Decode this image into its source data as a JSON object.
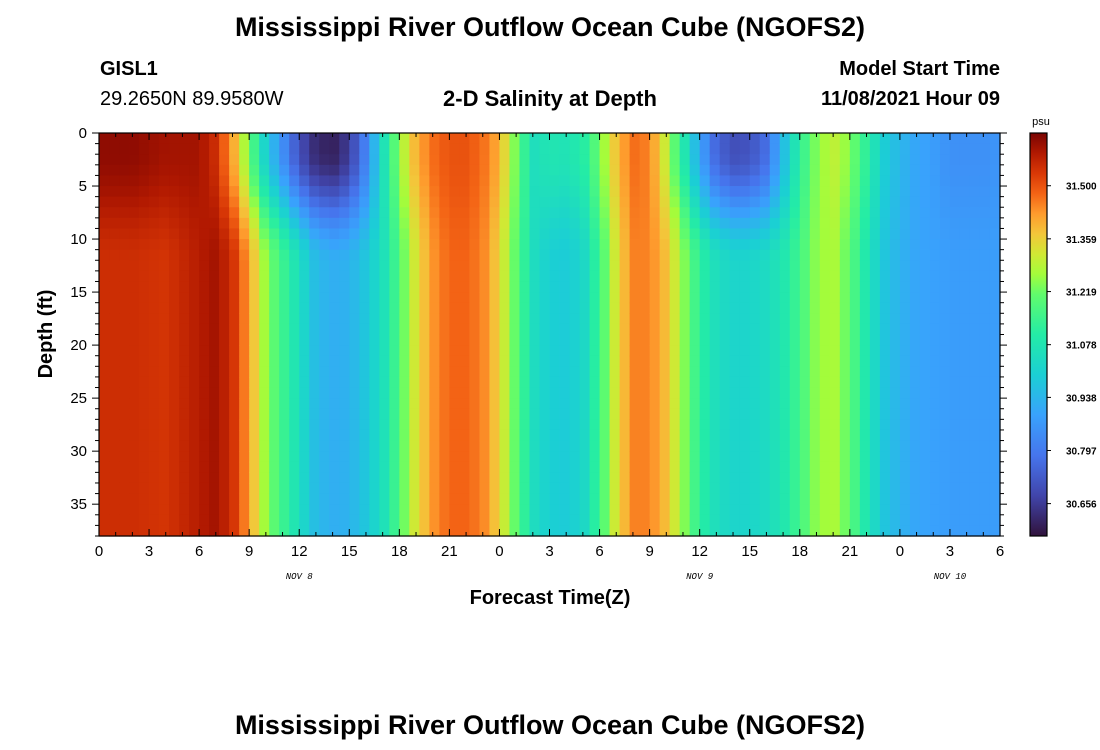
{
  "header": {
    "title": "Mississippi River Outflow Ocean Cube (NGOFS2)",
    "station_id": "GISL1",
    "station_coords": "29.2650N  89.9580W",
    "subtitle": "2-D Salinity at Depth",
    "model_start_label": "Model Start Time",
    "model_start_value": "11/08/2021 Hour 09"
  },
  "footer": {
    "title_repeat": "Mississippi River Outflow Ocean Cube (NGOFS2)"
  },
  "chart_data": {
    "type": "heatmap",
    "title": "2-D Salinity at Depth",
    "xlabel": "Forecast Time(Z)",
    "ylabel": "Depth (ft)",
    "x_tick_labels": [
      "0",
      "3",
      "6",
      "9",
      "12",
      "15",
      "18",
      "21",
      "0",
      "3",
      "6",
      "9",
      "12",
      "15",
      "18",
      "21",
      "0",
      "3",
      "6"
    ],
    "x_range_hours": [
      0,
      54
    ],
    "date_labels": [
      {
        "label": "NOV 8",
        "at_hour": 12
      },
      {
        "label": "NOV 9",
        "at_hour": 36
      },
      {
        "label": "NOV 10",
        "at_hour": 51
      }
    ],
    "y_tick_labels": [
      "0",
      "5",
      "10",
      "15",
      "20",
      "25",
      "30",
      "35"
    ],
    "y_range": [
      0,
      38
    ],
    "y_reversed": true,
    "colorbar": {
      "unit": "psu",
      "tick_labels": [
        "31.500",
        "31.359",
        "31.219",
        "31.078",
        "30.938",
        "30.797",
        "30.656"
      ],
      "min": 30.57,
      "max": 31.64
    },
    "salinity_profile": {
      "hours": [
        0,
        2,
        4,
        6,
        7,
        8,
        9,
        10,
        11,
        12,
        13,
        14,
        15,
        16,
        17,
        18,
        19,
        20,
        21,
        22,
        23,
        24,
        25,
        26,
        27,
        28,
        29,
        30,
        31,
        32,
        33,
        34,
        35,
        36,
        37,
        38,
        39,
        40,
        41,
        42,
        43,
        44,
        45,
        46,
        47,
        48,
        49,
        50,
        51,
        52,
        53,
        54
      ],
      "surface": [
        31.62,
        31.62,
        31.6,
        31.6,
        31.55,
        31.42,
        31.22,
        31.0,
        30.85,
        30.7,
        30.62,
        30.6,
        30.66,
        30.82,
        31.05,
        31.25,
        31.4,
        31.47,
        31.5,
        31.5,
        31.47,
        31.4,
        31.22,
        31.05,
        31.08,
        31.07,
        31.1,
        31.22,
        31.38,
        31.47,
        31.45,
        31.3,
        31.1,
        30.9,
        30.75,
        30.7,
        30.71,
        30.77,
        30.95,
        31.12,
        31.24,
        31.3,
        31.24,
        31.12,
        31.0,
        30.94,
        30.9,
        30.88,
        30.85,
        30.85,
        30.85,
        30.86
      ],
      "bottom": [
        31.55,
        31.55,
        31.54,
        31.58,
        31.6,
        31.55,
        31.42,
        31.25,
        31.15,
        31.05,
        30.95,
        30.92,
        30.93,
        30.98,
        31.05,
        31.18,
        31.33,
        31.43,
        31.48,
        31.48,
        31.45,
        31.35,
        31.2,
        31.05,
        31.0,
        30.99,
        31.02,
        31.15,
        31.33,
        31.45,
        31.45,
        31.38,
        31.25,
        31.12,
        31.05,
        31.02,
        31.02,
        31.04,
        31.08,
        31.16,
        31.25,
        31.28,
        31.2,
        31.08,
        30.98,
        30.93,
        30.9,
        30.89,
        30.88,
        30.88,
        30.88,
        30.88
      ]
    }
  }
}
